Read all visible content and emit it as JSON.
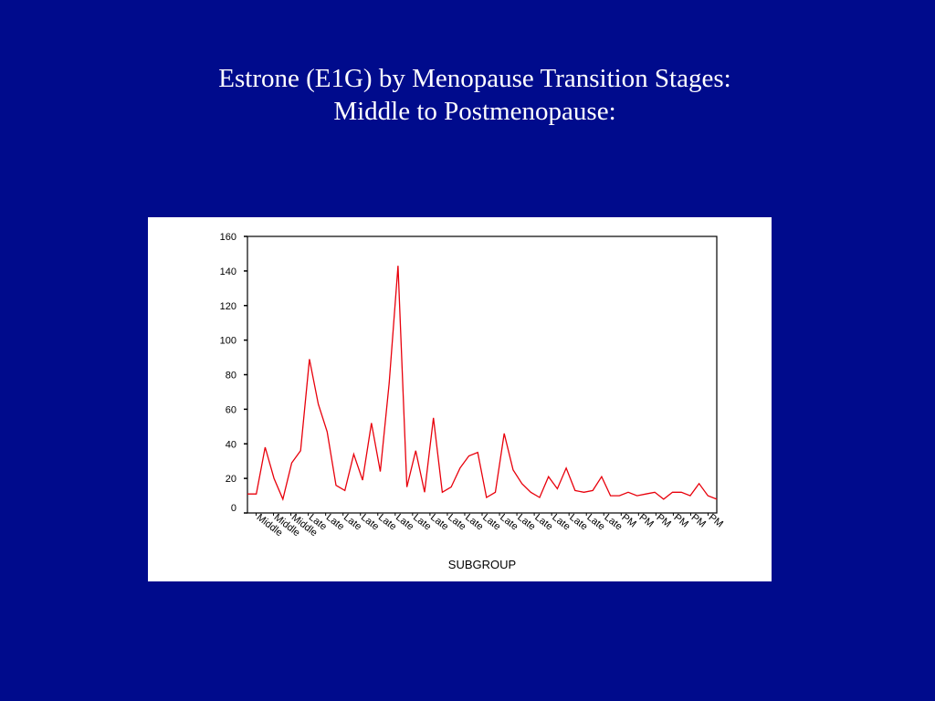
{
  "slide": {
    "title_line1": "Estrone (E1G)  by Menopause Transition Stages:",
    "title_line2": "Middle to Postmenopause:",
    "background": "#000b8c"
  },
  "chart_data": {
    "type": "line",
    "title": "Estrone (E1G)  by Menopause Transition Stages: Middle to Postmenopause:",
    "xlabel": "SUBGROUP",
    "ylabel": "",
    "ylim": [
      0,
      160
    ],
    "yticks": [
      0,
      20,
      40,
      60,
      80,
      100,
      120,
      140,
      160
    ],
    "grid": false,
    "legend": "none",
    "line_color": "#e8000b",
    "x_tick_labels": [
      "Middle",
      "Middle",
      "Middle",
      "Late",
      "Late",
      "Late",
      "Late",
      "Late",
      "Late",
      "Late",
      "Late",
      "Late",
      "Late",
      "Late",
      "Late",
      "Late",
      "Late",
      "Late",
      "Late",
      "Late",
      "Late",
      "PM",
      "PM",
      "PM",
      "PM",
      "PM",
      "PM"
    ],
    "values": [
      11,
      11,
      38,
      20,
      8,
      29,
      36,
      89,
      63,
      47,
      16,
      13,
      34,
      19,
      52,
      24,
      75,
      143,
      15,
      36,
      12,
      55,
      12,
      15,
      26,
      33,
      35,
      9,
      12,
      46,
      25,
      17,
      12,
      9,
      21,
      14,
      26,
      13,
      12,
      13,
      21,
      10,
      10,
      12,
      10,
      11,
      12,
      8,
      12,
      12,
      10,
      17,
      10,
      8
    ]
  }
}
